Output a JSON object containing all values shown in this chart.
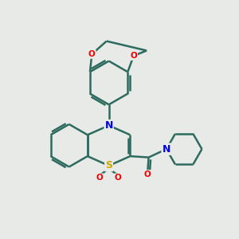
{
  "bg_color": "#e8eae8",
  "bond_color": "#2d6b5e",
  "bond_width": 1.8,
  "atom_colors": {
    "N": "#0000ee",
    "O": "#ee0000",
    "S": "#ccaa00",
    "C": "#2d6b5e"
  }
}
